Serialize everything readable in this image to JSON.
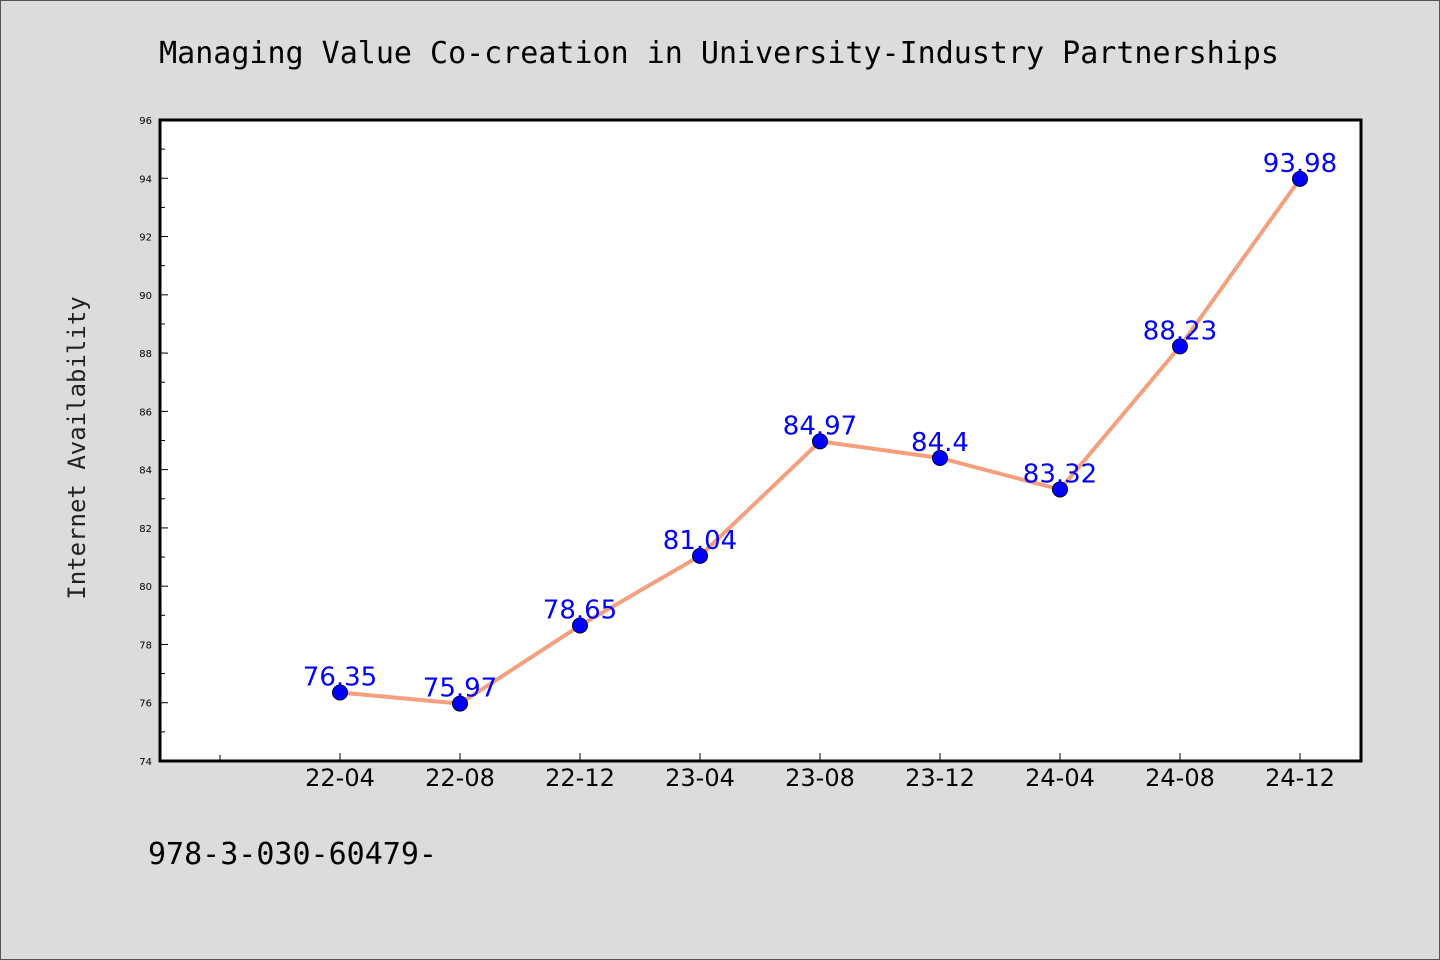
{
  "chart_data": {
    "type": "line",
    "title": "Managing Value Co-creation in University-Industry Partnerships",
    "xlabel": "",
    "ylabel": "Internet Availability",
    "categories": [
      "22-04",
      "22-08",
      "22-12",
      "23-04",
      "23-08",
      "23-12",
      "24-04",
      "24-08",
      "24-12"
    ],
    "series": [
      {
        "values": [
          76.35,
          75.97,
          78.65,
          81.04,
          84.97,
          84.4,
          83.32,
          88.23,
          93.98
        ]
      }
    ],
    "data_labels": [
      "76.35",
      "75.97",
      "78.65",
      "81.04",
      "84.97",
      "84.4",
      "83.32",
      "88.23",
      "93.98"
    ],
    "ylim": [
      74,
      96
    ],
    "yticks": [
      "74",
      "76",
      "78",
      "80",
      "82",
      "84",
      "86",
      "88",
      "90",
      "92",
      "94",
      "96"
    ],
    "grid": false,
    "line_color": "#f4a07e",
    "marker_color": "#0000ff",
    "label_color": "#0000ff",
    "background_color": "#dcdcdc",
    "plot_background": "#ffffff"
  },
  "footer": {
    "text": "978-3-030-60479-"
  }
}
